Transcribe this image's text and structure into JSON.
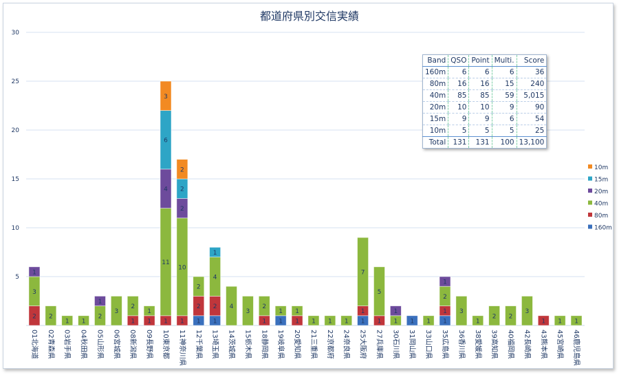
{
  "chart_data": {
    "type": "bar",
    "stacked": true,
    "title": "都道府県別交信実績",
    "ylim": [
      0,
      30
    ],
    "yticks": [
      5,
      10,
      15,
      20,
      25,
      30
    ],
    "grid": true,
    "legend_position": "right",
    "categories": [
      "01北海道",
      "02青森県",
      "03岩手県",
      "04秋田県",
      "05山形県",
      "06宮城県",
      "08新潟県",
      "09長野県",
      "10東京都",
      "11神奈川県",
      "12千葉県",
      "13埼玉県",
      "14茨城県",
      "15栃木県",
      "18静岡県",
      "19岐阜県",
      "20愛知県",
      "21三重県",
      "22京都府",
      "24奈良県",
      "25大阪府",
      "27兵庫県",
      "30石川県",
      "31岡山県",
      "33山口県",
      "35広島県",
      "36香川県",
      "38愛媛県",
      "39高知県",
      "40福岡県",
      "42長崎県",
      "43熊本県",
      "45宮崎県",
      "46鹿児島県"
    ],
    "series": [
      {
        "name": "160m",
        "color": "#3a70bd",
        "values": [
          0,
          0,
          0,
          0,
          0,
          0,
          0,
          0,
          0,
          0,
          1,
          1,
          0,
          0,
          0,
          1,
          0,
          0,
          0,
          0,
          1,
          0,
          0,
          1,
          0,
          1,
          0,
          0,
          0,
          0,
          0,
          0,
          0,
          0
        ]
      },
      {
        "name": "80m",
        "color": "#c0363b",
        "values": [
          2,
          0,
          0,
          0,
          0,
          0,
          1,
          1,
          1,
          1,
          2,
          2,
          0,
          0,
          1,
          0,
          1,
          0,
          0,
          0,
          1,
          1,
          0,
          0,
          0,
          1,
          0,
          0,
          0,
          0,
          0,
          1,
          0,
          0
        ]
      },
      {
        "name": "40m",
        "color": "#8cb83e",
        "values": [
          3,
          2,
          1,
          1,
          2,
          3,
          2,
          1,
          11,
          10,
          2,
          4,
          4,
          3,
          2,
          1,
          1,
          1,
          1,
          1,
          7,
          5,
          1,
          0,
          1,
          2,
          3,
          1,
          2,
          2,
          3,
          0,
          1,
          1
        ]
      },
      {
        "name": "20m",
        "color": "#6d4b9c",
        "values": [
          1,
          0,
          0,
          0,
          1,
          0,
          0,
          0,
          4,
          2,
          0,
          0,
          0,
          0,
          0,
          0,
          0,
          0,
          0,
          0,
          0,
          0,
          1,
          0,
          0,
          1,
          0,
          0,
          0,
          0,
          0,
          0,
          0,
          0
        ]
      },
      {
        "name": "15m",
        "color": "#2ea5c6",
        "values": [
          0,
          0,
          0,
          0,
          0,
          0,
          0,
          0,
          6,
          2,
          0,
          1,
          0,
          0,
          0,
          0,
          0,
          0,
          0,
          0,
          0,
          0,
          0,
          0,
          0,
          0,
          0,
          0,
          0,
          0,
          0,
          0,
          0,
          0
        ]
      },
      {
        "name": "10m",
        "color": "#f28a22",
        "values": [
          0,
          0,
          0,
          0,
          0,
          0,
          0,
          0,
          3,
          2,
          0,
          0,
          0,
          0,
          0,
          0,
          0,
          0,
          0,
          0,
          0,
          0,
          0,
          0,
          0,
          0,
          0,
          0,
          0,
          0,
          0,
          0,
          0,
          0
        ]
      }
    ]
  },
  "table": {
    "headers": [
      "Band",
      "QSO",
      "Point",
      "Multi.",
      "Score"
    ],
    "rows": [
      [
        "160m",
        "6",
        "6",
        "6",
        "36"
      ],
      [
        "80m",
        "16",
        "16",
        "15",
        "240"
      ],
      [
        "40m",
        "85",
        "85",
        "59",
        "5,015"
      ],
      [
        "20m",
        "10",
        "10",
        "9",
        "90"
      ],
      [
        "15m",
        "9",
        "9",
        "6",
        "54"
      ],
      [
        "10m",
        "5",
        "5",
        "5",
        "25"
      ]
    ],
    "total": [
      "Total",
      "131",
      "131",
      "100",
      "13,100"
    ]
  }
}
